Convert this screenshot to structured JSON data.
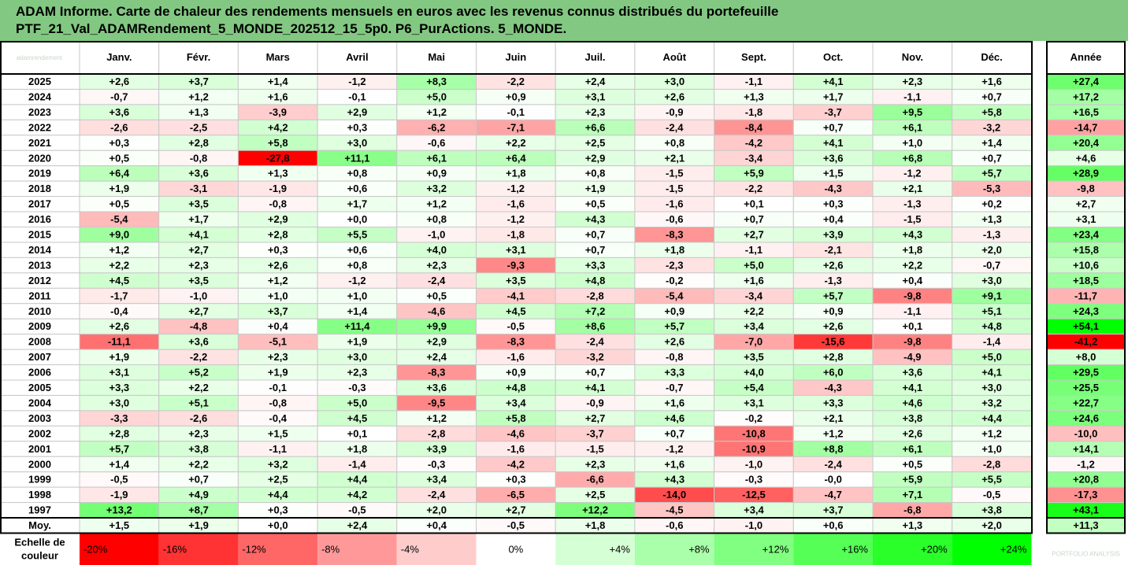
{
  "title_line1": "ADAM Informe. Carte de chaleur des rendements mensuels en euros avec les revenus connus distribués du portefeuille",
  "title_line2": "PTF_21_Val_ADAMRendement_5_MONDE_202512_15_5p0. P6_PurActions. 5_MONDE.",
  "watermark_top": "adamrendement",
  "watermark_bottom": "PORTFOLIO ANALYSIS",
  "colors": {
    "title_bg": "#82c882",
    "negative": "#ff0000",
    "positive": "#00ff00",
    "neutral": "#ffffff"
  },
  "chart_data": {
    "type": "heatmap",
    "columns": [
      "Janv.",
      "Févr.",
      "Mars",
      "Avril",
      "Mai",
      "Juin",
      "Juil.",
      "Août",
      "Sept.",
      "Oct.",
      "Nov.",
      "Déc."
    ],
    "year_column": "Année",
    "rows": [
      {
        "label": "2025",
        "values": [
          "+2,6",
          "+3,7",
          "+1,4",
          "-1,2",
          "+8,3",
          "-2,2",
          "+2,4",
          "+3,0",
          "-1,1",
          "+4,1",
          "+2,3",
          "+1,6"
        ],
        "year": "+27,4"
      },
      {
        "label": "2024",
        "values": [
          "-0,7",
          "+1,2",
          "+1,6",
          "-0,1",
          "+5,0",
          "+0,9",
          "+3,1",
          "+2,6",
          "+1,3",
          "+1,7",
          "-1,1",
          "+0,7"
        ],
        "year": "+17,2"
      },
      {
        "label": "2023",
        "values": [
          "+3,6",
          "+1,3",
          "-3,9",
          "+2,9",
          "+1,2",
          "-0,1",
          "+2,3",
          "-0,9",
          "-1,8",
          "-3,7",
          "+9,5",
          "+5,8"
        ],
        "year": "+16,5"
      },
      {
        "label": "2022",
        "values": [
          "-2,6",
          "-2,5",
          "+4,2",
          "+0,3",
          "-6,2",
          "-7,1",
          "+6,6",
          "-2,4",
          "-8,4",
          "+0,7",
          "+6,1",
          "-3,2"
        ],
        "year": "-14,7"
      },
      {
        "label": "2021",
        "values": [
          "+0,3",
          "+2,8",
          "+5,8",
          "+3,0",
          "-0,6",
          "+2,2",
          "+2,5",
          "+0,8",
          "-4,2",
          "+4,1",
          "+1,0",
          "+1,4"
        ],
        "year": "+20,4"
      },
      {
        "label": "2020",
        "values": [
          "+0,5",
          "-0,8",
          "-27,8",
          "+11,1",
          "+6,1",
          "+6,4",
          "+2,9",
          "+2,1",
          "-3,4",
          "+3,6",
          "+6,8",
          "+0,7"
        ],
        "year": "+4,6"
      },
      {
        "label": "2019",
        "values": [
          "+6,4",
          "+3,6",
          "+1,3",
          "+0,8",
          "+0,9",
          "+1,8",
          "+0,8",
          "-1,5",
          "+5,9",
          "+1,5",
          "-1,2",
          "+5,7"
        ],
        "year": "+28,9"
      },
      {
        "label": "2018",
        "values": [
          "+1,9",
          "-3,1",
          "-1,9",
          "+0,6",
          "+3,2",
          "-1,2",
          "+1,9",
          "-1,5",
          "-2,2",
          "-4,3",
          "+2,1",
          "-5,3"
        ],
        "year": "-9,8"
      },
      {
        "label": "2017",
        "values": [
          "+0,5",
          "+3,5",
          "-0,8",
          "+1,7",
          "+1,2",
          "-1,6",
          "+0,5",
          "-1,6",
          "+0,1",
          "+0,3",
          "-1,3",
          "+0,2"
        ],
        "year": "+2,7"
      },
      {
        "label": "2016",
        "values": [
          "-5,4",
          "+1,7",
          "+2,9",
          "+0,0",
          "+0,8",
          "-1,2",
          "+4,3",
          "-0,6",
          "+0,7",
          "+0,4",
          "-1,5",
          "+1,3"
        ],
        "year": "+3,1"
      },
      {
        "label": "2015",
        "values": [
          "+9,0",
          "+4,1",
          "+2,8",
          "+5,5",
          "-1,0",
          "-1,8",
          "+0,7",
          "-8,3",
          "+2,7",
          "+3,9",
          "+4,3",
          "-1,3"
        ],
        "year": "+23,4"
      },
      {
        "label": "2014",
        "values": [
          "+1,2",
          "+2,7",
          "+0,3",
          "+0,6",
          "+4,0",
          "+3,1",
          "+0,7",
          "+1,8",
          "-1,1",
          "-2,1",
          "+1,8",
          "+2,0"
        ],
        "year": "+15,8"
      },
      {
        "label": "2013",
        "values": [
          "+2,2",
          "+2,3",
          "+2,6",
          "+0,8",
          "+2,3",
          "-9,3",
          "+3,3",
          "-2,3",
          "+5,0",
          "+2,6",
          "+2,2",
          "-0,7"
        ],
        "year": "+10,6"
      },
      {
        "label": "2012",
        "values": [
          "+4,5",
          "+3,5",
          "+1,2",
          "-1,2",
          "-2,4",
          "+3,5",
          "+4,8",
          "-0,2",
          "+1,6",
          "-1,3",
          "+0,4",
          "+3,0"
        ],
        "year": "+18,5"
      },
      {
        "label": "2011",
        "values": [
          "-1,7",
          "-1,0",
          "+1,0",
          "+1,0",
          "+0,5",
          "-4,1",
          "-2,8",
          "-5,4",
          "-3,4",
          "+5,7",
          "-9,8",
          "+9,1"
        ],
        "year": "-11,7"
      },
      {
        "label": "2010",
        "values": [
          "-0,4",
          "+2,7",
          "+3,7",
          "+1,4",
          "-4,6",
          "+4,5",
          "+7,2",
          "+0,9",
          "+2,2",
          "+0,9",
          "-1,1",
          "+5,1"
        ],
        "year": "+24,3"
      },
      {
        "label": "2009",
        "values": [
          "+2,6",
          "-4,8",
          "+0,4",
          "+11,4",
          "+9,9",
          "-0,5",
          "+8,6",
          "+5,7",
          "+3,4",
          "+2,6",
          "+0,1",
          "+4,8"
        ],
        "year": "+54,1"
      },
      {
        "label": "2008",
        "values": [
          "-11,1",
          "+3,6",
          "-5,1",
          "+1,9",
          "+2,9",
          "-8,3",
          "-2,4",
          "+2,6",
          "-7,0",
          "-15,6",
          "-9,8",
          "-1,4"
        ],
        "year": "-41,2"
      },
      {
        "label": "2007",
        "values": [
          "+1,9",
          "-2,2",
          "+2,3",
          "+3,0",
          "+2,4",
          "-1,6",
          "-3,2",
          "-0,8",
          "+3,5",
          "+2,8",
          "-4,9",
          "+5,0"
        ],
        "year": "+8,0"
      },
      {
        "label": "2006",
        "values": [
          "+3,1",
          "+5,2",
          "+1,9",
          "+2,3",
          "-8,3",
          "+0,9",
          "+0,7",
          "+3,3",
          "+4,0",
          "+6,0",
          "+3,6",
          "+4,1"
        ],
        "year": "+29,5"
      },
      {
        "label": "2005",
        "values": [
          "+3,3",
          "+2,2",
          "-0,1",
          "-0,3",
          "+3,6",
          "+4,8",
          "+4,1",
          "-0,7",
          "+5,4",
          "-4,3",
          "+4,1",
          "+3,0"
        ],
        "year": "+25,5"
      },
      {
        "label": "2004",
        "values": [
          "+3,0",
          "+5,1",
          "-0,8",
          "+5,0",
          "-9,5",
          "+3,4",
          "-0,9",
          "+1,6",
          "+3,1",
          "+3,3",
          "+4,6",
          "+3,2"
        ],
        "year": "+22,7"
      },
      {
        "label": "2003",
        "values": [
          "-3,3",
          "-2,6",
          "-0,4",
          "+4,5",
          "+1,2",
          "+5,8",
          "+2,7",
          "+4,6",
          "-0,2",
          "+2,1",
          "+3,8",
          "+4,4"
        ],
        "year": "+24,6"
      },
      {
        "label": "2002",
        "values": [
          "+2,8",
          "+2,3",
          "+1,5",
          "+0,1",
          "-2,8",
          "-4,6",
          "-3,7",
          "+0,7",
          "-10,8",
          "+1,2",
          "+2,6",
          "+1,2"
        ],
        "year": "-10,0"
      },
      {
        "label": "2001",
        "values": [
          "+5,7",
          "+3,8",
          "-1,1",
          "+1,8",
          "+3,9",
          "-1,6",
          "-1,5",
          "-1,2",
          "-10,9",
          "+8,8",
          "+6,1",
          "+1,0"
        ],
        "year": "+14,1"
      },
      {
        "label": "2000",
        "values": [
          "+1,4",
          "+2,2",
          "+3,2",
          "-1,4",
          "-0,3",
          "-4,2",
          "+2,3",
          "+1,6",
          "-1,0",
          "-2,4",
          "+0,5",
          "-2,8"
        ],
        "year": "-1,2"
      },
      {
        "label": "1999",
        "values": [
          "-0,5",
          "+0,7",
          "+2,5",
          "+4,4",
          "+3,4",
          "+0,3",
          "-6,6",
          "+4,3",
          "-0,3",
          "-0,0",
          "+5,9",
          "+5,5"
        ],
        "year": "+20,8"
      },
      {
        "label": "1998",
        "values": [
          "-1,9",
          "+4,9",
          "+4,4",
          "+4,2",
          "-2,4",
          "-6,5",
          "+2,5",
          "-14,0",
          "-12,5",
          "-4,7",
          "+7,1",
          "-0,5"
        ],
        "year": "-17,3"
      },
      {
        "label": "1997",
        "values": [
          "+13,2",
          "+8,7",
          "+0,3",
          "-0,5",
          "+2,0",
          "+2,7",
          "+12,2",
          "-4,5",
          "+3,4",
          "+3,7",
          "-6,8",
          "+3,8"
        ],
        "year": "+43,1"
      }
    ],
    "average": {
      "label": "Moy.",
      "values": [
        "+1,5",
        "+1,9",
        "+0,0",
        "+2,4",
        "+0,4",
        "-0,5",
        "+1,8",
        "-0,6",
        "-1,0",
        "+0,6",
        "+1,3",
        "+2,0"
      ],
      "year": "+11,3"
    },
    "scale": {
      "label_line1": "Echelle de",
      "label_line2": "couleur",
      "stops": [
        "-20%",
        "-16%",
        "-12%",
        "-8%",
        "-4%",
        "0%",
        "+4%",
        "+8%",
        "+12%",
        "+16%",
        "+20%",
        "+24%"
      ],
      "values": [
        -20,
        -16,
        -12,
        -8,
        -4,
        0,
        4,
        8,
        12,
        16,
        20,
        24
      ]
    },
    "color_range": {
      "monthly_min": -20,
      "monthly_max": 24,
      "year_min": -40,
      "year_max": 48
    }
  }
}
